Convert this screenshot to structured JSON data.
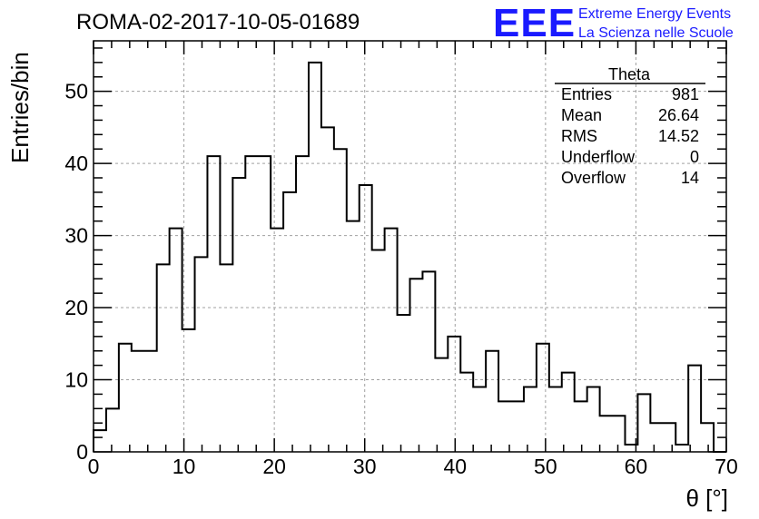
{
  "header": {
    "title": "ROMA-02-2017-10-05-01689",
    "brand_logo": "EEE",
    "brand_line1": "Extreme Energy Events",
    "brand_line2": "La Scienza nelle Scuole",
    "brand_color": "#1a1aff"
  },
  "stats_box": {
    "name": "Theta",
    "rows": [
      {
        "label": "Entries",
        "value": "981"
      },
      {
        "label": "Mean",
        "value": "26.64"
      },
      {
        "label": "RMS",
        "value": "14.52"
      },
      {
        "label": "Underflow",
        "value": "0"
      },
      {
        "label": "Overflow",
        "value": "14"
      }
    ]
  },
  "chart_data": {
    "type": "histogram",
    "xlabel": "θ [°]",
    "ylabel": "Entries/bin",
    "xlim": [
      0,
      70
    ],
    "ylim": [
      0,
      57
    ],
    "bin_width": 1.4,
    "bin_start": 0,
    "values": [
      3,
      6,
      15,
      14,
      14,
      26,
      31,
      17,
      27,
      41,
      26,
      38,
      41,
      41,
      31,
      36,
      41,
      54,
      45,
      42,
      32,
      37,
      28,
      31,
      19,
      24,
      25,
      13,
      16,
      11,
      9,
      14,
      7,
      7,
      9,
      15,
      9,
      11,
      7,
      9,
      5,
      5,
      1,
      8,
      4,
      4,
      1,
      12,
      4,
      0
    ],
    "x_ticks": [
      0,
      10,
      20,
      30,
      40,
      50,
      60,
      70
    ],
    "y_ticks": [
      0,
      10,
      20,
      30,
      40,
      50
    ],
    "grid": true
  }
}
